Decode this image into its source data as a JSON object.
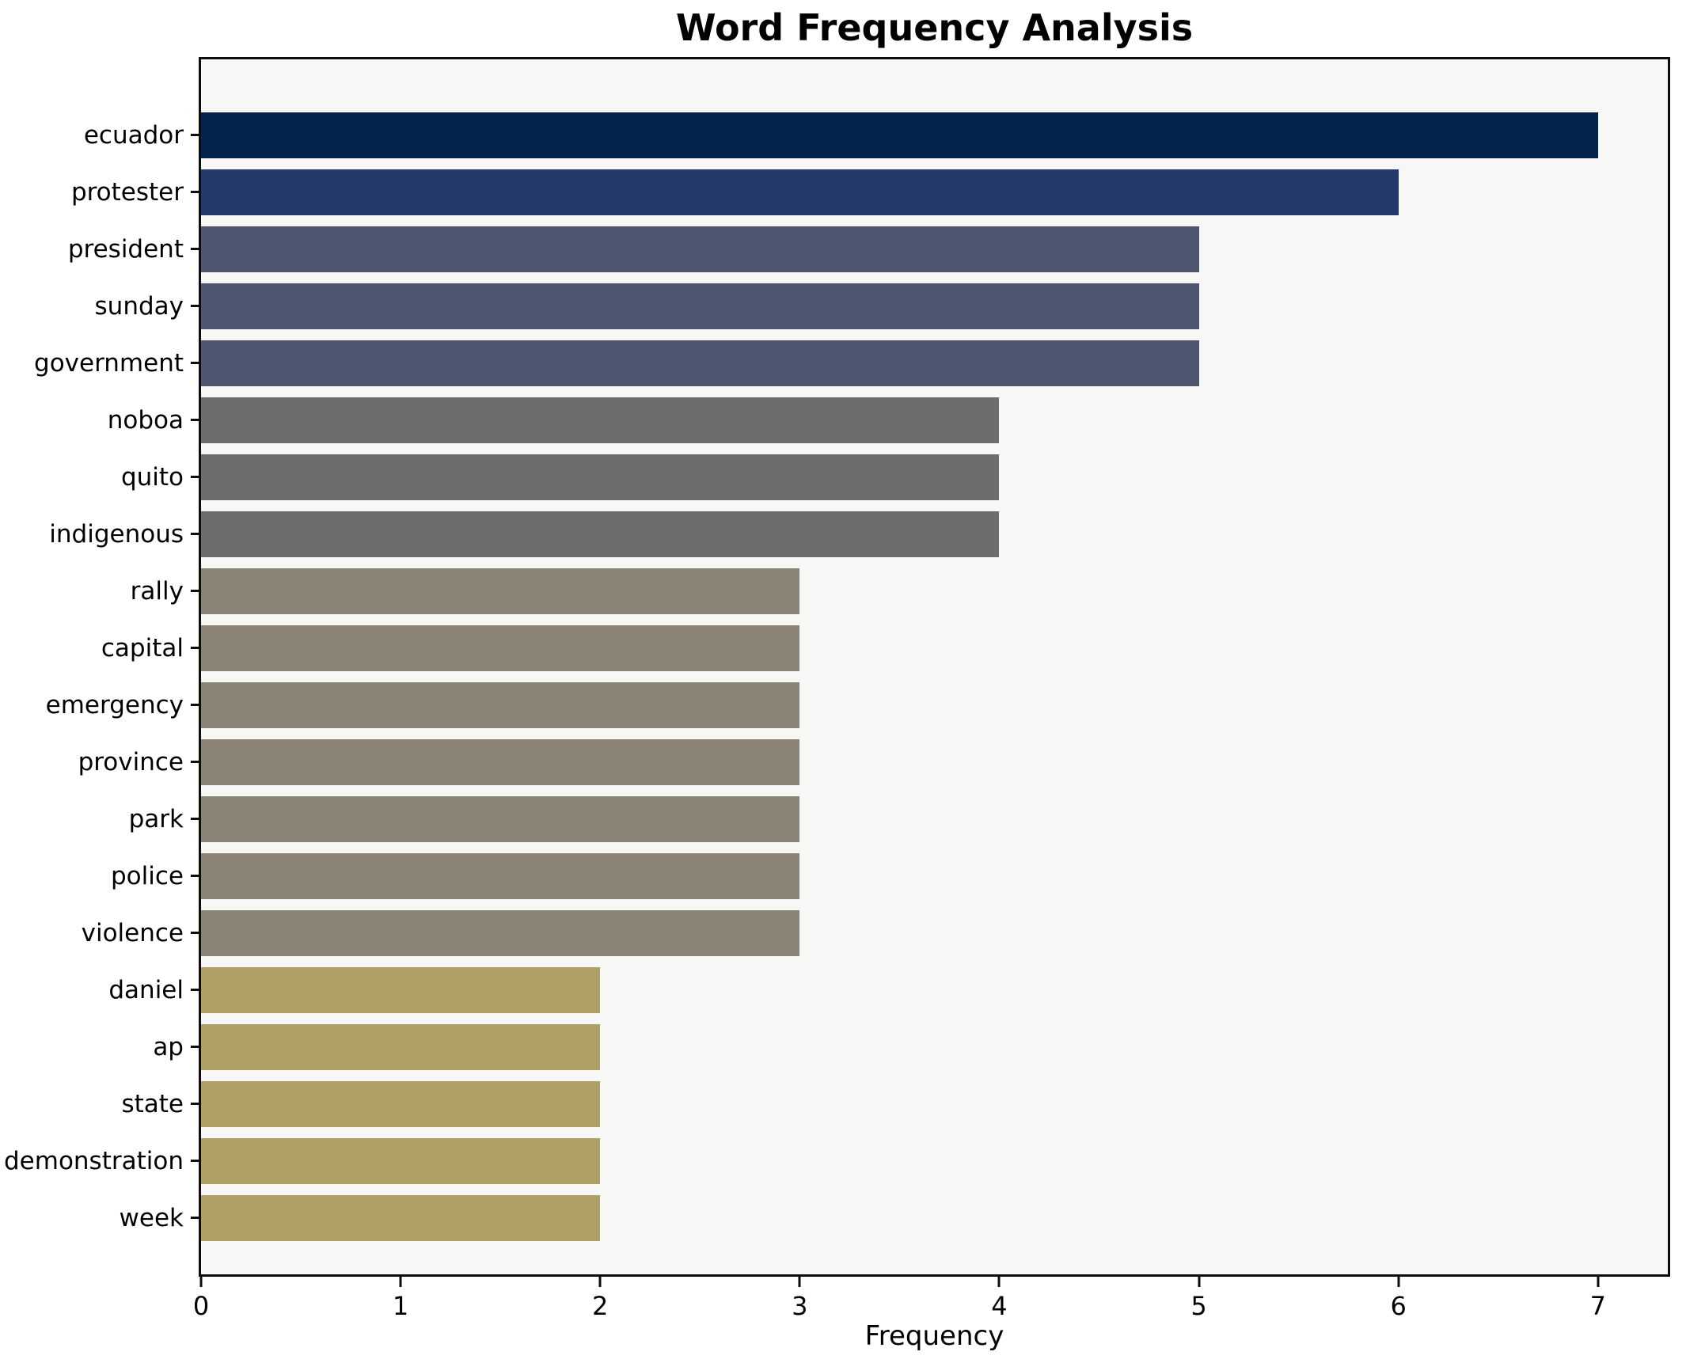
{
  "title": "Word Frequency Analysis",
  "chart_data": {
    "type": "bar",
    "orientation": "horizontal",
    "title": "Word Frequency Analysis",
    "xlabel": "Frequency",
    "ylabel": "",
    "xlim": [
      0,
      7.35
    ],
    "x_ticks": [
      0,
      1,
      2,
      3,
      4,
      5,
      6,
      7
    ],
    "grid": false,
    "legend": "none",
    "plot_background": "#f7f7f5",
    "figure_background": "#ffffff",
    "spine_color": "#0d0d0d",
    "categories": [
      "ecuador",
      "protester",
      "president",
      "sunday",
      "government",
      "noboa",
      "quito",
      "indigenous",
      "rally",
      "capital",
      "emergency",
      "province",
      "park",
      "police",
      "violence",
      "daniel",
      "ap",
      "state",
      "demonstration",
      "week"
    ],
    "values": [
      7,
      6,
      5,
      5,
      5,
      4,
      4,
      4,
      3,
      3,
      3,
      3,
      3,
      3,
      3,
      2,
      2,
      2,
      2,
      2
    ],
    "colors": [
      "#03234d",
      "#243a6b",
      "#4d5570",
      "#4d5570",
      "#4d5570",
      "#6d6d70",
      "#6d6d70",
      "#6d6d70",
      "#8b8476",
      "#8b8476",
      "#8b8476",
      "#8b8476",
      "#8b8476",
      "#8b8476",
      "#8b8476",
      "#ae9f66",
      "#ae9f66",
      "#ae9f66",
      "#ae9f66",
      "#ae9f66"
    ]
  }
}
